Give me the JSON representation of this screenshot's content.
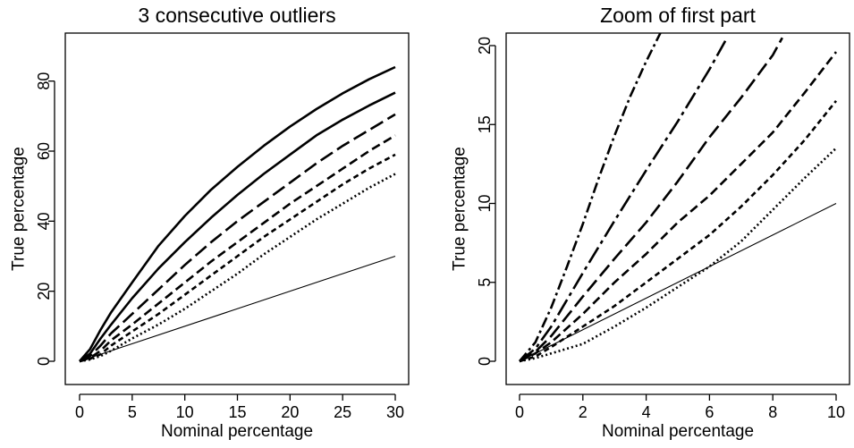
{
  "chart_data": [
    {
      "type": "line",
      "title": "3 consecutive outliers",
      "xlabel": "Nominal percentage",
      "ylabel": "True percentage",
      "xlim": [
        0,
        30
      ],
      "ylim": [
        0,
        90
      ],
      "xticks": [
        0,
        5,
        10,
        15,
        20,
        25,
        30
      ],
      "yticks": [
        0,
        20,
        40,
        60,
        80
      ],
      "grid": false,
      "series": [
        {
          "style": "solid",
          "x": [
            0,
            1,
            2,
            3,
            5,
            7.5,
            10,
            12.5,
            15,
            17.5,
            20,
            22.5,
            25,
            27.5,
            30
          ],
          "y": [
            0,
            3.5,
            9,
            14,
            22.5,
            33,
            41.5,
            49,
            55.5,
            61.5,
            67,
            72,
            76.5,
            80.5,
            84
          ]
        },
        {
          "style": "solid",
          "x": [
            0,
            1,
            2,
            3,
            5,
            7.5,
            10,
            12.5,
            15,
            17.5,
            20,
            22.5,
            25,
            27.5,
            30
          ],
          "y": [
            0,
            2.2,
            6.5,
            10.5,
            18,
            26.5,
            34,
            41,
            47.5,
            53.5,
            59,
            64.5,
            69,
            73,
            76.7
          ]
        },
        {
          "style": "long-dash",
          "x": [
            0,
            1,
            2,
            3,
            5,
            7.5,
            10,
            12.5,
            15,
            17.5,
            20,
            22.5,
            25,
            27.5,
            30
          ],
          "y": [
            0,
            1.5,
            4.5,
            8,
            13.5,
            20.5,
            27.5,
            34,
            40,
            45.5,
            51,
            56.5,
            61.5,
            66,
            70.5
          ]
        },
        {
          "style": "dash",
          "x": [
            0,
            1,
            2,
            3,
            5,
            7.5,
            10,
            12.5,
            15,
            17.5,
            20,
            22.5,
            25,
            27.5,
            30
          ],
          "y": [
            0,
            1,
            3,
            6,
            10.5,
            16.5,
            22.5,
            28.5,
            34,
            39.5,
            45,
            50,
            55,
            60,
            64.5
          ]
        },
        {
          "style": "short-dash",
          "x": [
            0,
            1,
            2,
            3,
            5,
            7.5,
            10,
            12.5,
            15,
            17.5,
            20,
            22.5,
            25,
            27.5,
            30
          ],
          "y": [
            0,
            0.7,
            2,
            4.5,
            8.5,
            13.5,
            19,
            24.5,
            30,
            35.5,
            40.5,
            45.5,
            50.5,
            55,
            59
          ]
        },
        {
          "style": "dotted",
          "x": [
            0,
            1,
            2,
            3,
            5,
            7.5,
            10,
            12.5,
            15,
            17.5,
            20,
            22.5,
            25,
            27.5,
            30
          ],
          "y": [
            0,
            0.5,
            1.5,
            3,
            6.5,
            10.5,
            15,
            20,
            25,
            30.5,
            35.5,
            40.5,
            45,
            49.5,
            53.5
          ]
        },
        {
          "style": "thin-solid",
          "x": [
            0,
            30
          ],
          "y": [
            0,
            30
          ]
        }
      ]
    },
    {
      "type": "line",
      "title": "Zoom of first part",
      "xlabel": "Nominal percentage",
      "ylabel": "True percentage",
      "xlim": [
        0,
        10
      ],
      "ylim": [
        0,
        20
      ],
      "xticks": [
        0,
        2,
        4,
        6,
        8,
        10
      ],
      "yticks": [
        0,
        5,
        10,
        15,
        20
      ],
      "grid": false,
      "series": [
        {
          "style": "dash-dot",
          "x": [
            0,
            0.5,
            1,
            1.5,
            2,
            2.5,
            3,
            3.5,
            4,
            4.5
          ],
          "y": [
            0,
            1.2,
            3.4,
            6,
            8.7,
            11.6,
            14.3,
            16.8,
            19,
            21
          ]
        },
        {
          "style": "long-dash-dot",
          "x": [
            0,
            0.5,
            1,
            2,
            3,
            4,
            5,
            6,
            6.5
          ],
          "y": [
            0,
            0.8,
            2.2,
            5.6,
            8.9,
            12.1,
            15.2,
            18.5,
            20.3
          ]
        },
        {
          "style": "long-dash",
          "x": [
            0,
            0.5,
            1,
            2,
            3,
            4,
            5,
            6,
            7,
            8,
            8.3
          ],
          "y": [
            0,
            0.6,
            1.6,
            4.1,
            6.5,
            8.8,
            11.4,
            14.2,
            16.7,
            19.4,
            20.5
          ]
        },
        {
          "style": "dash",
          "x": [
            0,
            0.5,
            1,
            2,
            3,
            4,
            5,
            6,
            7,
            8,
            9,
            10
          ],
          "y": [
            0,
            0.5,
            1.2,
            3,
            5,
            6.8,
            8.8,
            10.5,
            12.5,
            14.5,
            17,
            19.6
          ]
        },
        {
          "style": "short-dash",
          "x": [
            0,
            0.5,
            1,
            2,
            3,
            4,
            5,
            6,
            7,
            8,
            9,
            10
          ],
          "y": [
            0,
            0.3,
            0.9,
            2.2,
            3.5,
            5,
            6.5,
            8,
            9.8,
            11.8,
            14,
            16.5
          ]
        },
        {
          "style": "dotted",
          "x": [
            0,
            0.5,
            1,
            2,
            3,
            4,
            5,
            6,
            7,
            8,
            9,
            10
          ],
          "y": [
            0,
            0.2,
            0.5,
            1.1,
            2.2,
            3.4,
            4.7,
            6,
            7.6,
            9.6,
            11.6,
            13.5
          ]
        },
        {
          "style": "thin-solid",
          "x": [
            0,
            10
          ],
          "y": [
            0,
            10
          ]
        }
      ]
    }
  ]
}
